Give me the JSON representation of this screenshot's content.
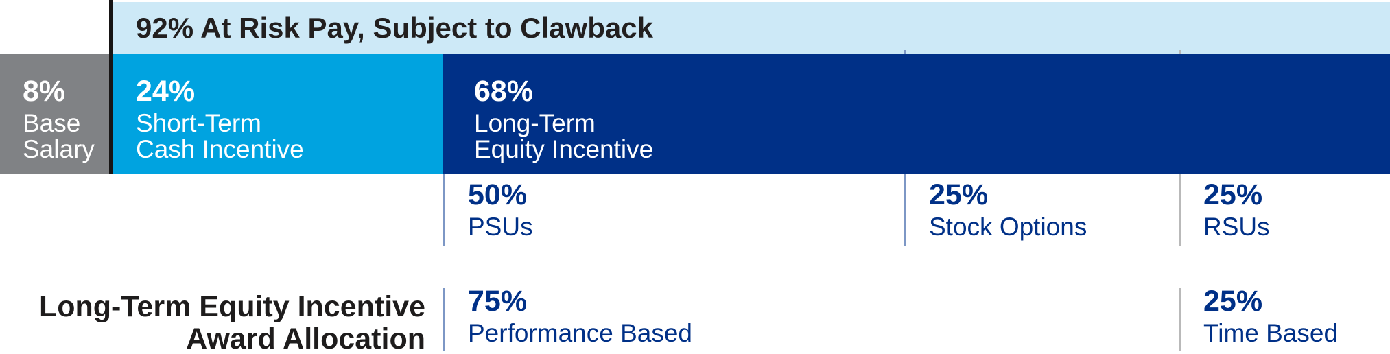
{
  "chart_data": {
    "type": "bar",
    "stacked": true,
    "units": "percent",
    "annotation": "92% At Risk Pay, Subject to Clawback",
    "segments": [
      {
        "label": "Base Salary",
        "value": 8,
        "color": "#808285"
      },
      {
        "label": "Short-Term Cash Incentive",
        "value": 24,
        "color": "#00a3e0"
      },
      {
        "label": "Long-Term Equity Incentive",
        "value": 68,
        "color": "#003087"
      }
    ],
    "long_term_equity_breakdown": [
      {
        "label": "PSUs",
        "value": 50
      },
      {
        "label": "Stock Options",
        "value": 25
      },
      {
        "label": "RSUs",
        "value": 25
      }
    ],
    "award_allocation": {
      "label": "Long-Term Equity Incentive Award Allocation",
      "items": [
        {
          "label": "Performance Based",
          "value": 75
        },
        {
          "label": "Time Based",
          "value": 25
        }
      ]
    }
  },
  "band": {
    "label": "92% At Risk Pay, Subject to Clawback"
  },
  "bar": {
    "base": {
      "pct": "8%",
      "line1": "Base",
      "line2": "Salary"
    },
    "sti": {
      "pct": "24%",
      "line1": "Short-Term",
      "line2": "Cash Incentive"
    },
    "lti": {
      "pct": "68%",
      "line1": "Long-Term",
      "line2": "Equity Incentive"
    }
  },
  "breakdown": {
    "psus": {
      "pct": "50%",
      "label": "PSUs"
    },
    "options": {
      "pct": "25%",
      "label": "Stock Options"
    },
    "rsus": {
      "pct": "25%",
      "label": "RSUs"
    }
  },
  "allocation": {
    "heading1": "Long-Term Equity Incentive",
    "heading2": "Award Allocation",
    "performance": {
      "pct": "75%",
      "label": "Performance Based"
    },
    "time": {
      "pct": "25%",
      "label": "Time Based"
    }
  },
  "colors": {
    "at_risk_band_bg": "#cde9f7",
    "base_salary_bg": "#808285",
    "short_term_bg": "#00a3e0",
    "long_term_bg": "#003087",
    "navy_text": "#003087",
    "blue_divider": "#7d97c5",
    "gray_divider": "#b9b9b9",
    "black_line": "#171515"
  }
}
